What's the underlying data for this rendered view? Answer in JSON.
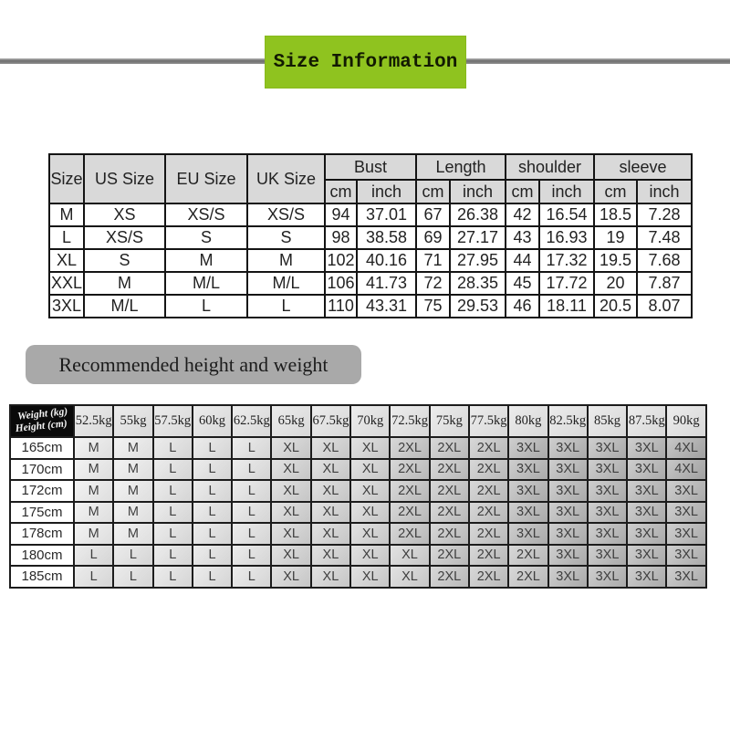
{
  "title": {
    "text": "Size Information",
    "banner_color": "#8fc31f",
    "rule_color": "#777777"
  },
  "size_table": {
    "simple_headers": [
      "Size",
      "US Size",
      "EU Size",
      "UK Size"
    ],
    "group_headers": [
      "Bust",
      "Length",
      "shoulder",
      "sleeve"
    ],
    "sub_headers": [
      "cm",
      "inch"
    ],
    "header_bg": "#d9d9d9",
    "rows": [
      [
        "M",
        "XS",
        "XS/S",
        "XS/S",
        "94",
        "37.01",
        "67",
        "26.38",
        "42",
        "16.54",
        "18.5",
        "7.28"
      ],
      [
        "L",
        "XS/S",
        "S",
        "S",
        "98",
        "38.58",
        "69",
        "27.17",
        "43",
        "16.93",
        "19",
        "7.48"
      ],
      [
        "XL",
        "S",
        "M",
        "M",
        "102",
        "40.16",
        "71",
        "27.95",
        "44",
        "17.32",
        "19.5",
        "7.68"
      ],
      [
        "XXL",
        "M",
        "M/L",
        "M/L",
        "106",
        "41.73",
        "72",
        "28.35",
        "45",
        "17.72",
        "20",
        "7.87"
      ],
      [
        "3XL",
        "M/L",
        "L",
        "L",
        "110",
        "43.31",
        "75",
        "29.53",
        "46",
        "18.11",
        "20.5",
        "8.07"
      ]
    ]
  },
  "recommend_banner": {
    "label": "Recommended height and weight",
    "bg": "#a9a9a9"
  },
  "fit_table": {
    "corner": {
      "top": "Weight (kg)",
      "bottom": "Height (cm)"
    },
    "weights": [
      "52.5kg",
      "55kg",
      "57.5kg",
      "60kg",
      "62.5kg",
      "65kg",
      "67.5kg",
      "70kg",
      "72.5kg",
      "75kg",
      "77.5kg",
      "80kg",
      "82.5kg",
      "85kg",
      "87.5kg",
      "90kg"
    ],
    "rows": [
      {
        "height": "165cm",
        "sizes": [
          "M",
          "M",
          "L",
          "L",
          "L",
          "XL",
          "XL",
          "XL",
          "2XL",
          "2XL",
          "2XL",
          "3XL",
          "3XL",
          "3XL",
          "3XL",
          "4XL"
        ]
      },
      {
        "height": "170cm",
        "sizes": [
          "M",
          "M",
          "L",
          "L",
          "L",
          "XL",
          "XL",
          "XL",
          "2XL",
          "2XL",
          "2XL",
          "3XL",
          "3XL",
          "3XL",
          "3XL",
          "4XL"
        ]
      },
      {
        "height": "172cm",
        "sizes": [
          "M",
          "M",
          "L",
          "L",
          "L",
          "XL",
          "XL",
          "XL",
          "2XL",
          "2XL",
          "2XL",
          "3XL",
          "3XL",
          "3XL",
          "3XL",
          "3XL"
        ]
      },
      {
        "height": "175cm",
        "sizes": [
          "M",
          "M",
          "L",
          "L",
          "L",
          "XL",
          "XL",
          "XL",
          "2XL",
          "2XL",
          "2XL",
          "3XL",
          "3XL",
          "3XL",
          "3XL",
          "3XL"
        ]
      },
      {
        "height": "178cm",
        "sizes": [
          "M",
          "M",
          "L",
          "L",
          "L",
          "XL",
          "XL",
          "XL",
          "2XL",
          "2XL",
          "2XL",
          "3XL",
          "3XL",
          "3XL",
          "3XL",
          "3XL"
        ]
      },
      {
        "height": "180cm",
        "sizes": [
          "L",
          "L",
          "L",
          "L",
          "L",
          "XL",
          "XL",
          "XL",
          "XL",
          "2XL",
          "2XL",
          "2XL",
          "3XL",
          "3XL",
          "3XL",
          "3XL"
        ]
      },
      {
        "height": "185cm",
        "sizes": [
          "L",
          "L",
          "L",
          "L",
          "L",
          "XL",
          "XL",
          "XL",
          "XL",
          "2XL",
          "2XL",
          "2XL",
          "3XL",
          "3XL",
          "3XL",
          "3XL"
        ]
      }
    ],
    "size_shades": {
      "M": "#ececec",
      "L": "#e2e2e2",
      "XL": "#d2d2d2",
      "2XL": "#c3c3c3",
      "3XL": "#b4b4b4",
      "4XL": "#aaaaaa"
    }
  }
}
